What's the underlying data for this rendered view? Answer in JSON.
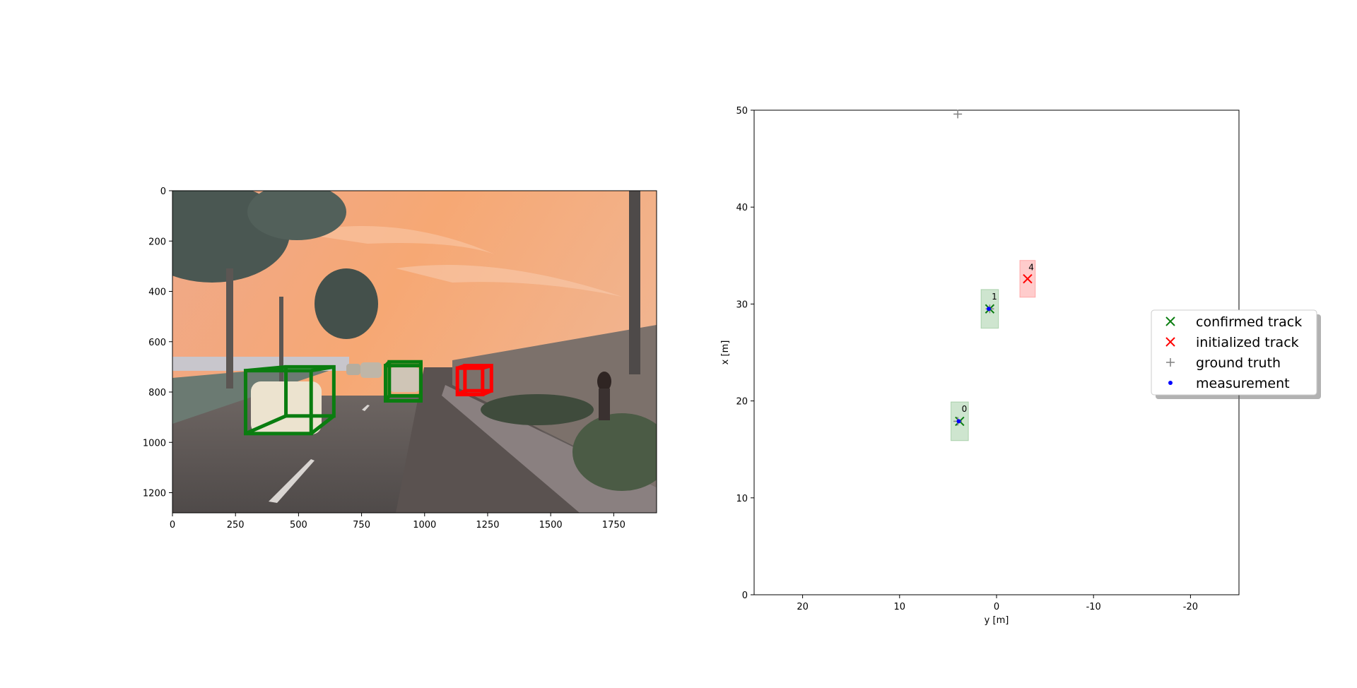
{
  "chart_data": [
    {
      "type": "image",
      "xlim": [
        0,
        1920
      ],
      "ylim": [
        1280,
        0
      ],
      "xticks": [
        0,
        250,
        500,
        750,
        1000,
        1250,
        1500,
        1750
      ],
      "yticks": [
        0,
        200,
        400,
        600,
        800,
        1000,
        1200
      ],
      "xtick_labels": [
        "0",
        "250",
        "500",
        "750",
        "1000",
        "1250",
        "1500",
        "1750"
      ],
      "ytick_labels": [
        "0",
        "200",
        "400",
        "600",
        "800",
        "1000",
        "1200"
      ],
      "colors": {
        "sky_top": "#f4a877",
        "sky_bottom": "#e9b99a",
        "road": "#5d5654",
        "wall": "#7c716b",
        "tree": "#3e4b46",
        "confirmed": "#0a7d10",
        "initialized": "#ff0000"
      },
      "boxes": [
        {
          "status": "confirmed",
          "front": [
            290,
            715,
            550,
            965
          ],
          "back": [
            450,
            700,
            640,
            895
          ]
        },
        {
          "status": "confirmed",
          "front": [
            845,
            695,
            985,
            835
          ],
          "back": [
            860,
            680,
            985,
            815
          ]
        },
        {
          "status": "initialized",
          "front": [
            1130,
            705,
            1230,
            810
          ],
          "back": [
            1160,
            695,
            1265,
            795
          ]
        }
      ]
    },
    {
      "type": "scatter",
      "xlabel": "y [m]",
      "ylabel": "x [m]",
      "xlim": [
        25,
        -25
      ],
      "ylim": [
        0,
        50
      ],
      "xticks": [
        20,
        10,
        0,
        -10,
        -20
      ],
      "yticks": [
        0,
        10,
        20,
        30,
        40,
        50
      ],
      "xtick_labels": [
        "20",
        "10",
        "0",
        "-10",
        "-20"
      ],
      "ytick_labels": [
        "0",
        "10",
        "20",
        "30",
        "40",
        "50"
      ],
      "tracks": [
        {
          "id": "0",
          "status": "confirmed",
          "y": 3.8,
          "x": 17.9,
          "width": 1.8,
          "length": 4.0
        },
        {
          "id": "1",
          "status": "confirmed",
          "y": 0.7,
          "x": 29.5,
          "width": 1.8,
          "length": 4.0
        },
        {
          "id": "4",
          "status": "initialized",
          "y": -3.2,
          "x": 32.6,
          "width": 1.6,
          "length": 3.8
        }
      ],
      "ground_truth": [
        {
          "y": 4.0,
          "x": 17.9
        },
        {
          "y": 0.7,
          "x": 29.5
        },
        {
          "y": 4.0,
          "x": 49.6
        }
      ],
      "measurements": [
        {
          "y": 3.9,
          "x": 17.9
        },
        {
          "y": 0.8,
          "x": 29.5
        }
      ],
      "legend": {
        "placement": "right",
        "entries": [
          {
            "label": "confirmed track",
            "marker": "x",
            "color": "#0a7d10"
          },
          {
            "label": "initialized track",
            "marker": "x",
            "color": "#ff0000"
          },
          {
            "label": "ground truth",
            "marker": "+",
            "color": "#808080"
          },
          {
            "label": "measurement",
            "marker": "dot",
            "color": "#0000ff"
          }
        ]
      }
    }
  ]
}
